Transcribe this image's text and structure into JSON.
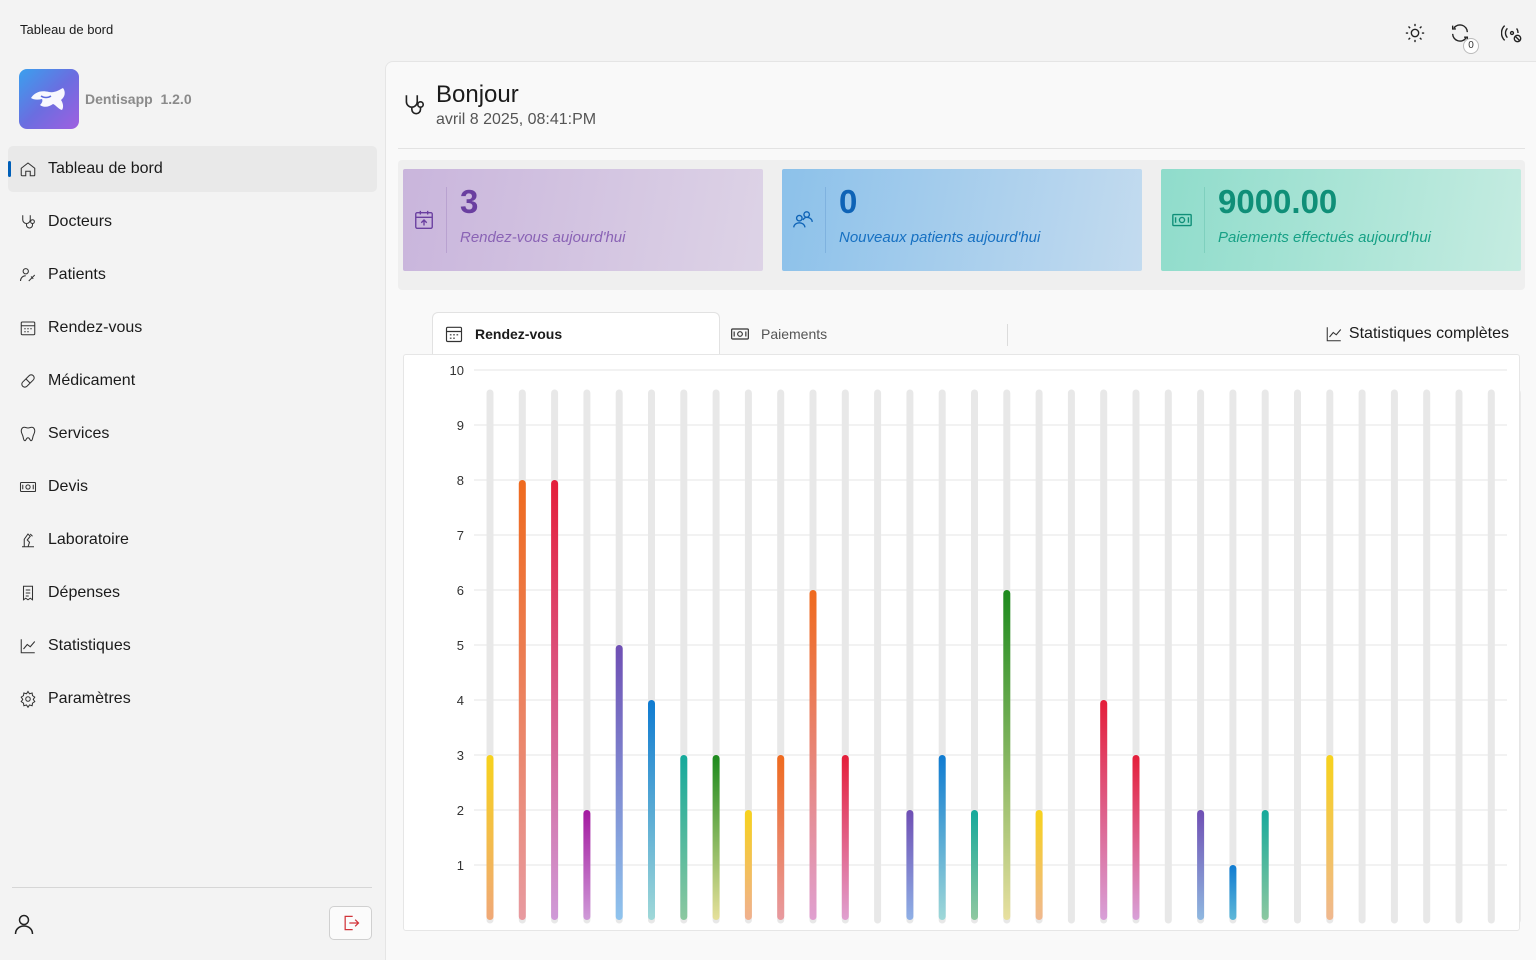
{
  "titlebar": {
    "title": "Tableau de bord",
    "icons": [
      "sun-icon",
      "sync-icon",
      "connection-icon"
    ],
    "sync_count": "0"
  },
  "sidebar": {
    "app_name": "Dentisapp",
    "app_version": "1.2.0",
    "items": [
      {
        "label": "Tableau de bord",
        "icon": "home-icon",
        "active": true
      },
      {
        "label": "Docteurs",
        "icon": "stethoscope-icon"
      },
      {
        "label": "Patients",
        "icon": "patients-icon"
      },
      {
        "label": "Rendez-vous",
        "icon": "calendar-icon"
      },
      {
        "label": "Médicament",
        "icon": "pill-icon"
      },
      {
        "label": "Services",
        "icon": "tooth-icon"
      },
      {
        "label": "Devis",
        "icon": "money-icon"
      },
      {
        "label": "Laboratoire",
        "icon": "lab-icon"
      },
      {
        "label": "Dépenses",
        "icon": "receipt-icon"
      },
      {
        "label": "Statistiques",
        "icon": "chart-icon"
      },
      {
        "label": "Paramètres",
        "icon": "gear-icon"
      }
    ]
  },
  "header": {
    "greeting": "Bonjour",
    "datetime": "avril 8 2025, 08:41:PM"
  },
  "cards": [
    {
      "value": "3",
      "label": "Rendez-vous aujourd'hui"
    },
    {
      "value": "0",
      "label": "Nouveaux patients aujourd'hui"
    },
    {
      "value": "9000.00",
      "label": "Paiements effectués aujourd'hui"
    }
  ],
  "tabs": {
    "appointments": "Rendez-vous",
    "payments": "Paiements",
    "full_stats": "Statistiques complètes"
  },
  "colors": {
    "accent": "#005fb8",
    "logout": "#d1343a"
  },
  "chart_data": {
    "type": "bar",
    "title": "",
    "xlabel": "",
    "ylabel": "",
    "ylim": [
      0,
      10
    ],
    "yticks": [
      1,
      2,
      3,
      4,
      5,
      6,
      7,
      8,
      9,
      10
    ],
    "grid": true,
    "legend": "none",
    "values": [
      3,
      8,
      8,
      2,
      5,
      4,
      3,
      3,
      2,
      3,
      6,
      3,
      0,
      2,
      3,
      2,
      6,
      2,
      0,
      4,
      3,
      0,
      2,
      1,
      2,
      0,
      3,
      0,
      0,
      0,
      0,
      0,
      0
    ],
    "colors": [
      "#f7d21c",
      "#ef6a1e",
      "#e41e3a",
      "#a319a0",
      "#6f4fb4",
      "#0f7bd1",
      "#15a99b",
      "#1d8a1d",
      "#f7d21c",
      "#ef6a1e",
      "#ef6a1e",
      "#e41e3a",
      "#cccccc",
      "#6f4fb4",
      "#0f7bd1",
      "#15a99b",
      "#1d8a1d",
      "#f7d21c",
      "#cccccc",
      "#e41e3a",
      "#e41e3a",
      "#cccccc",
      "#6f4fb4",
      "#0f7bd1",
      "#15a99b",
      "#cccccc",
      "#f7d21c",
      "#cccccc",
      "#cccccc",
      "#cccccc",
      "#cccccc",
      "#cccccc",
      "#cccccc"
    ],
    "fade_colors": [
      "#f0a878",
      "#e89aa0",
      "#cf9ad8",
      "#cf9ad8",
      "#8fc4ee",
      "#9fd8d8",
      "#8cc8a0",
      "#e6e09a",
      "#f0b090",
      "#e89aa0",
      "#e0a0d0",
      "#e0a0d0",
      "#cccccc",
      "#8fb0e6",
      "#9fd8d8",
      "#90c8a0",
      "#e8e0a0",
      "#f0b890",
      "#cccccc",
      "#d8a0d8",
      "#d8a0d8",
      "#cccccc",
      "#8fb8e0",
      "#5fb8d8",
      "#8cc8a0",
      "#cccccc",
      "#f0b890",
      "#cccccc",
      "#cccccc",
      "#cccccc",
      "#cccccc",
      "#cccccc",
      "#cccccc"
    ]
  }
}
